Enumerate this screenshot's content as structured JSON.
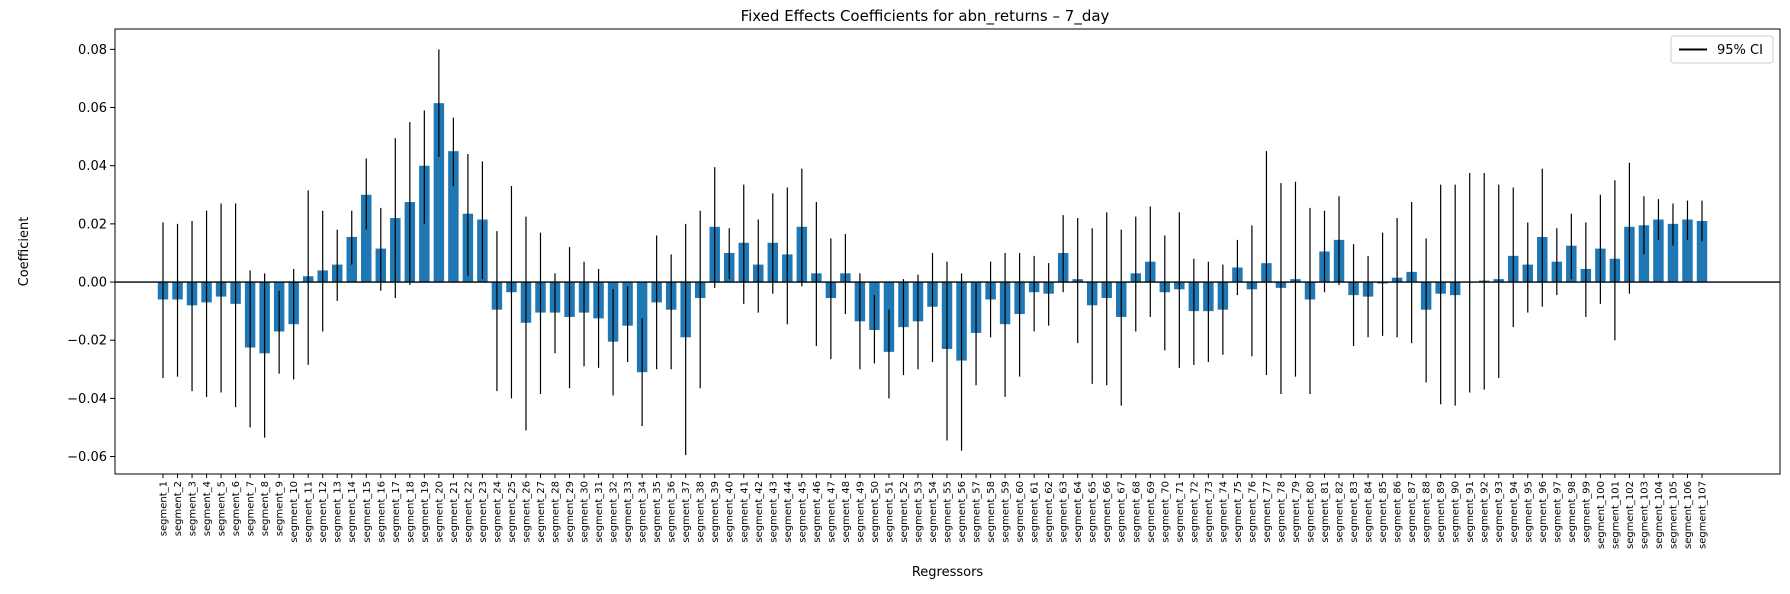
{
  "chart_data": {
    "type": "bar",
    "title": "Fixed Effects Coefficients for abn_returns – 7_day",
    "xlabel": "Regressors",
    "ylabel": "Coefficient",
    "ylim": [
      -0.066,
      0.087
    ],
    "yticks": [
      -0.06,
      -0.04,
      -0.02,
      0.0,
      0.02,
      0.04,
      0.06,
      0.08
    ],
    "ytick_labels": [
      "−0.06",
      "−0.04",
      "−0.02",
      "0.00",
      "0.02",
      "0.04",
      "0.06",
      "0.08"
    ],
    "legend": {
      "label": "95% CI",
      "position": "top-right"
    },
    "bar_color": "#1f77b4",
    "ci_color": "#000000",
    "grid": false,
    "categories": [
      "segment_1",
      "segment_2",
      "segment_3",
      "segment_4",
      "segment_5",
      "segment_6",
      "segment_7",
      "segment_8",
      "segment_9",
      "segment_10",
      "segment_11",
      "segment_12",
      "segment_13",
      "segment_14",
      "segment_15",
      "segment_16",
      "segment_17",
      "segment_18",
      "segment_19",
      "segment_20",
      "segment_21",
      "segment_22",
      "segment_23",
      "segment_24",
      "segment_25",
      "segment_26",
      "segment_27",
      "segment_28",
      "segment_29",
      "segment_30",
      "segment_31",
      "segment_32",
      "segment_33",
      "segment_34",
      "segment_35",
      "segment_36",
      "segment_37",
      "segment_38",
      "segment_39",
      "segment_40",
      "segment_41",
      "segment_42",
      "segment_43",
      "segment_44",
      "segment_45",
      "segment_46",
      "segment_47",
      "segment_48",
      "segment_49",
      "segment_50",
      "segment_51",
      "segment_52",
      "segment_53",
      "segment_54",
      "segment_55",
      "segment_56",
      "segment_57",
      "segment_58",
      "segment_59",
      "segment_60",
      "segment_61",
      "segment_62",
      "segment_63",
      "segment_64",
      "segment_65",
      "segment_66",
      "segment_67",
      "segment_68",
      "segment_69",
      "segment_70",
      "segment_71",
      "segment_72",
      "segment_73",
      "segment_74",
      "segment_75",
      "segment_76",
      "segment_77",
      "segment_78",
      "segment_79",
      "segment_80",
      "segment_81",
      "segment_82",
      "segment_83",
      "segment_84",
      "segment_85",
      "segment_86",
      "segment_87",
      "segment_88",
      "segment_89",
      "segment_90",
      "segment_91",
      "segment_92",
      "segment_93",
      "segment_94",
      "segment_95",
      "segment_96",
      "segment_97",
      "segment_98",
      "segment_99",
      "segment_100",
      "segment_101",
      "segment_102",
      "segment_103",
      "segment_104",
      "segment_105",
      "segment_106",
      "segment_107"
    ],
    "values": [
      -0.006,
      -0.006,
      -0.008,
      -0.007,
      -0.005,
      -0.0075,
      -0.0225,
      -0.0245,
      -0.017,
      -0.0145,
      0.002,
      0.004,
      0.006,
      0.0155,
      0.03,
      0.0115,
      0.022,
      0.0275,
      0.04,
      0.0615,
      0.045,
      0.0235,
      0.0215,
      -0.0095,
      -0.0035,
      -0.014,
      -0.0105,
      -0.0105,
      -0.012,
      -0.0105,
      -0.0125,
      -0.0205,
      -0.015,
      -0.031,
      -0.007,
      -0.0095,
      -0.019,
      -0.0055,
      0.019,
      0.01,
      0.0135,
      0.006,
      0.0135,
      0.0095,
      0.019,
      0.003,
      -0.0055,
      0.003,
      -0.0135,
      -0.0165,
      -0.024,
      -0.0155,
      -0.0135,
      -0.0085,
      -0.023,
      -0.027,
      -0.0175,
      -0.006,
      -0.0145,
      -0.011,
      -0.0035,
      -0.004,
      0.01,
      0.001,
      -0.008,
      -0.0055,
      -0.012,
      0.003,
      0.007,
      -0.0035,
      -0.0025,
      -0.01,
      -0.01,
      -0.0095,
      0.005,
      -0.0025,
      0.0065,
      -0.002,
      0.001,
      -0.006,
      0.0105,
      0.0145,
      -0.0045,
      -0.005,
      -0.0005,
      0.0015,
      0.0035,
      -0.0095,
      -0.004,
      -0.0045,
      0.0,
      0.0005,
      0.001,
      0.009,
      0.006,
      0.0155,
      0.007,
      0.0125,
      0.0045,
      0.0115,
      0.008,
      0.019,
      0.0195,
      0.0215,
      0.02,
      0.0215,
      0.021
    ],
    "ci_low": [
      -0.033,
      -0.0325,
      -0.0375,
      -0.0395,
      -0.038,
      -0.043,
      -0.05,
      -0.0535,
      -0.0315,
      -0.0335,
      -0.0285,
      -0.017,
      -0.0065,
      0.006,
      0.018,
      -0.003,
      -0.0055,
      -0.001,
      0.02,
      0.043,
      0.033,
      0.002,
      0.001,
      -0.0375,
      -0.04,
      -0.051,
      -0.0385,
      -0.0245,
      -0.0365,
      -0.029,
      -0.0295,
      -0.039,
      -0.0275,
      -0.0495,
      -0.03,
      -0.03,
      -0.0595,
      -0.0365,
      -0.002,
      0.001,
      -0.0075,
      -0.0105,
      -0.004,
      -0.0145,
      -0.0015,
      -0.022,
      -0.0265,
      -0.011,
      -0.03,
      -0.028,
      -0.04,
      -0.032,
      -0.03,
      -0.0275,
      -0.0545,
      -0.058,
      -0.0355,
      -0.019,
      -0.0395,
      -0.0325,
      -0.017,
      -0.015,
      -0.0035,
      -0.021,
      -0.035,
      -0.0355,
      -0.0425,
      -0.017,
      -0.012,
      -0.0235,
      -0.0295,
      -0.0285,
      -0.0275,
      -0.025,
      -0.0045,
      -0.0255,
      -0.032,
      -0.0385,
      -0.0325,
      -0.0385,
      -0.0035,
      -0.001,
      -0.022,
      -0.019,
      -0.0185,
      -0.019,
      -0.021,
      -0.0345,
      -0.042,
      -0.0425,
      -0.038,
      -0.037,
      -0.033,
      -0.0155,
      -0.0105,
      -0.0085,
      -0.0045,
      0.001,
      -0.012,
      -0.0075,
      -0.02,
      -0.004,
      0.0095,
      0.0145,
      0.0125,
      0.0145,
      0.014
    ],
    "ci_high": [
      0.0205,
      0.02,
      0.021,
      0.0245,
      0.027,
      0.027,
      0.004,
      0.003,
      -0.003,
      0.0045,
      0.0315,
      0.0245,
      0.018,
      0.0245,
      0.0425,
      0.0255,
      0.0495,
      0.055,
      0.059,
      0.08,
      0.0565,
      0.044,
      0.0415,
      0.0175,
      0.033,
      0.0225,
      0.017,
      0.003,
      0.012,
      0.007,
      0.0045,
      -0.0025,
      -0.0015,
      -0.0125,
      0.016,
      0.0095,
      0.02,
      0.0245,
      0.0395,
      0.0185,
      0.0335,
      0.0215,
      0.0305,
      0.0325,
      0.039,
      0.0275,
      0.015,
      0.0165,
      0.003,
      -0.0045,
      -0.0095,
      0.001,
      0.0025,
      0.01,
      0.007,
      0.003,
      -0.0005,
      0.007,
      0.01,
      0.01,
      0.009,
      0.0065,
      0.023,
      0.022,
      0.0185,
      0.024,
      0.018,
      0.0225,
      0.026,
      0.016,
      0.024,
      0.008,
      0.007,
      0.006,
      0.0145,
      0.0195,
      0.045,
      0.034,
      0.0345,
      0.0255,
      0.0245,
      0.0295,
      0.013,
      0.009,
      0.017,
      0.022,
      0.0275,
      0.015,
      0.0335,
      0.0335,
      0.0375,
      0.0375,
      0.0335,
      0.0325,
      0.0205,
      0.039,
      0.0185,
      0.0235,
      0.0205,
      0.03,
      0.035,
      0.041,
      0.0295,
      0.0285,
      0.027,
      0.028,
      0.028
    ]
  }
}
